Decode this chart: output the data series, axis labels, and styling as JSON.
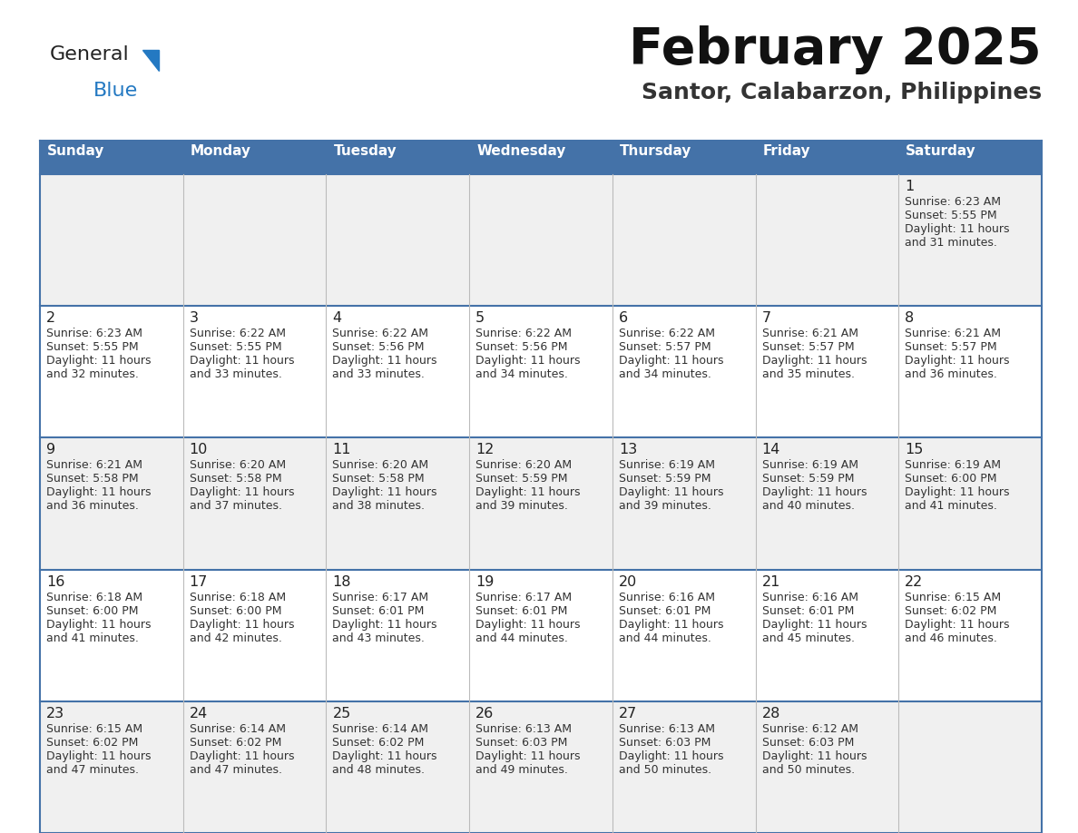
{
  "title": "February 2025",
  "subtitle": "Santor, Calabarzon, Philippines",
  "header_bg": "#4472a8",
  "header_text": "#ffffff",
  "row_bg_odd": "#f0f0f0",
  "row_bg_even": "#ffffff",
  "border_color": "#4472a8",
  "text_color": "#333333",
  "day_names": [
    "Sunday",
    "Monday",
    "Tuesday",
    "Wednesday",
    "Thursday",
    "Friday",
    "Saturday"
  ],
  "days": [
    {
      "day": 1,
      "col": 6,
      "row": 0,
      "sunrise": "6:23 AM",
      "sunset": "5:55 PM",
      "daylight_line1": "11 hours",
      "daylight_line2": "and 31 minutes."
    },
    {
      "day": 2,
      "col": 0,
      "row": 1,
      "sunrise": "6:23 AM",
      "sunset": "5:55 PM",
      "daylight_line1": "11 hours",
      "daylight_line2": "and 32 minutes."
    },
    {
      "day": 3,
      "col": 1,
      "row": 1,
      "sunrise": "6:22 AM",
      "sunset": "5:55 PM",
      "daylight_line1": "11 hours",
      "daylight_line2": "and 33 minutes."
    },
    {
      "day": 4,
      "col": 2,
      "row": 1,
      "sunrise": "6:22 AM",
      "sunset": "5:56 PM",
      "daylight_line1": "11 hours",
      "daylight_line2": "and 33 minutes."
    },
    {
      "day": 5,
      "col": 3,
      "row": 1,
      "sunrise": "6:22 AM",
      "sunset": "5:56 PM",
      "daylight_line1": "11 hours",
      "daylight_line2": "and 34 minutes."
    },
    {
      "day": 6,
      "col": 4,
      "row": 1,
      "sunrise": "6:22 AM",
      "sunset": "5:57 PM",
      "daylight_line1": "11 hours",
      "daylight_line2": "and 34 minutes."
    },
    {
      "day": 7,
      "col": 5,
      "row": 1,
      "sunrise": "6:21 AM",
      "sunset": "5:57 PM",
      "daylight_line1": "11 hours",
      "daylight_line2": "and 35 minutes."
    },
    {
      "day": 8,
      "col": 6,
      "row": 1,
      "sunrise": "6:21 AM",
      "sunset": "5:57 PM",
      "daylight_line1": "11 hours",
      "daylight_line2": "and 36 minutes."
    },
    {
      "day": 9,
      "col": 0,
      "row": 2,
      "sunrise": "6:21 AM",
      "sunset": "5:58 PM",
      "daylight_line1": "11 hours",
      "daylight_line2": "and 36 minutes."
    },
    {
      "day": 10,
      "col": 1,
      "row": 2,
      "sunrise": "6:20 AM",
      "sunset": "5:58 PM",
      "daylight_line1": "11 hours",
      "daylight_line2": "and 37 minutes."
    },
    {
      "day": 11,
      "col": 2,
      "row": 2,
      "sunrise": "6:20 AM",
      "sunset": "5:58 PM",
      "daylight_line1": "11 hours",
      "daylight_line2": "and 38 minutes."
    },
    {
      "day": 12,
      "col": 3,
      "row": 2,
      "sunrise": "6:20 AM",
      "sunset": "5:59 PM",
      "daylight_line1": "11 hours",
      "daylight_line2": "and 39 minutes."
    },
    {
      "day": 13,
      "col": 4,
      "row": 2,
      "sunrise": "6:19 AM",
      "sunset": "5:59 PM",
      "daylight_line1": "11 hours",
      "daylight_line2": "and 39 minutes."
    },
    {
      "day": 14,
      "col": 5,
      "row": 2,
      "sunrise": "6:19 AM",
      "sunset": "5:59 PM",
      "daylight_line1": "11 hours",
      "daylight_line2": "and 40 minutes."
    },
    {
      "day": 15,
      "col": 6,
      "row": 2,
      "sunrise": "6:19 AM",
      "sunset": "6:00 PM",
      "daylight_line1": "11 hours",
      "daylight_line2": "and 41 minutes."
    },
    {
      "day": 16,
      "col": 0,
      "row": 3,
      "sunrise": "6:18 AM",
      "sunset": "6:00 PM",
      "daylight_line1": "11 hours",
      "daylight_line2": "and 41 minutes."
    },
    {
      "day": 17,
      "col": 1,
      "row": 3,
      "sunrise": "6:18 AM",
      "sunset": "6:00 PM",
      "daylight_line1": "11 hours",
      "daylight_line2": "and 42 minutes."
    },
    {
      "day": 18,
      "col": 2,
      "row": 3,
      "sunrise": "6:17 AM",
      "sunset": "6:01 PM",
      "daylight_line1": "11 hours",
      "daylight_line2": "and 43 minutes."
    },
    {
      "day": 19,
      "col": 3,
      "row": 3,
      "sunrise": "6:17 AM",
      "sunset": "6:01 PM",
      "daylight_line1": "11 hours",
      "daylight_line2": "and 44 minutes."
    },
    {
      "day": 20,
      "col": 4,
      "row": 3,
      "sunrise": "6:16 AM",
      "sunset": "6:01 PM",
      "daylight_line1": "11 hours",
      "daylight_line2": "and 44 minutes."
    },
    {
      "day": 21,
      "col": 5,
      "row": 3,
      "sunrise": "6:16 AM",
      "sunset": "6:01 PM",
      "daylight_line1": "11 hours",
      "daylight_line2": "and 45 minutes."
    },
    {
      "day": 22,
      "col": 6,
      "row": 3,
      "sunrise": "6:15 AM",
      "sunset": "6:02 PM",
      "daylight_line1": "11 hours",
      "daylight_line2": "and 46 minutes."
    },
    {
      "day": 23,
      "col": 0,
      "row": 4,
      "sunrise": "6:15 AM",
      "sunset": "6:02 PM",
      "daylight_line1": "11 hours",
      "daylight_line2": "and 47 minutes."
    },
    {
      "day": 24,
      "col": 1,
      "row": 4,
      "sunrise": "6:14 AM",
      "sunset": "6:02 PM",
      "daylight_line1": "11 hours",
      "daylight_line2": "and 47 minutes."
    },
    {
      "day": 25,
      "col": 2,
      "row": 4,
      "sunrise": "6:14 AM",
      "sunset": "6:02 PM",
      "daylight_line1": "11 hours",
      "daylight_line2": "and 48 minutes."
    },
    {
      "day": 26,
      "col": 3,
      "row": 4,
      "sunrise": "6:13 AM",
      "sunset": "6:03 PM",
      "daylight_line1": "11 hours",
      "daylight_line2": "and 49 minutes."
    },
    {
      "day": 27,
      "col": 4,
      "row": 4,
      "sunrise": "6:13 AM",
      "sunset": "6:03 PM",
      "daylight_line1": "11 hours",
      "daylight_line2": "and 50 minutes."
    },
    {
      "day": 28,
      "col": 5,
      "row": 4,
      "sunrise": "6:12 AM",
      "sunset": "6:03 PM",
      "daylight_line1": "11 hours",
      "daylight_line2": "and 50 minutes."
    }
  ],
  "logo_general_color": "#222222",
  "logo_blue_color": "#2479c2",
  "logo_triangle_color": "#2479c2"
}
